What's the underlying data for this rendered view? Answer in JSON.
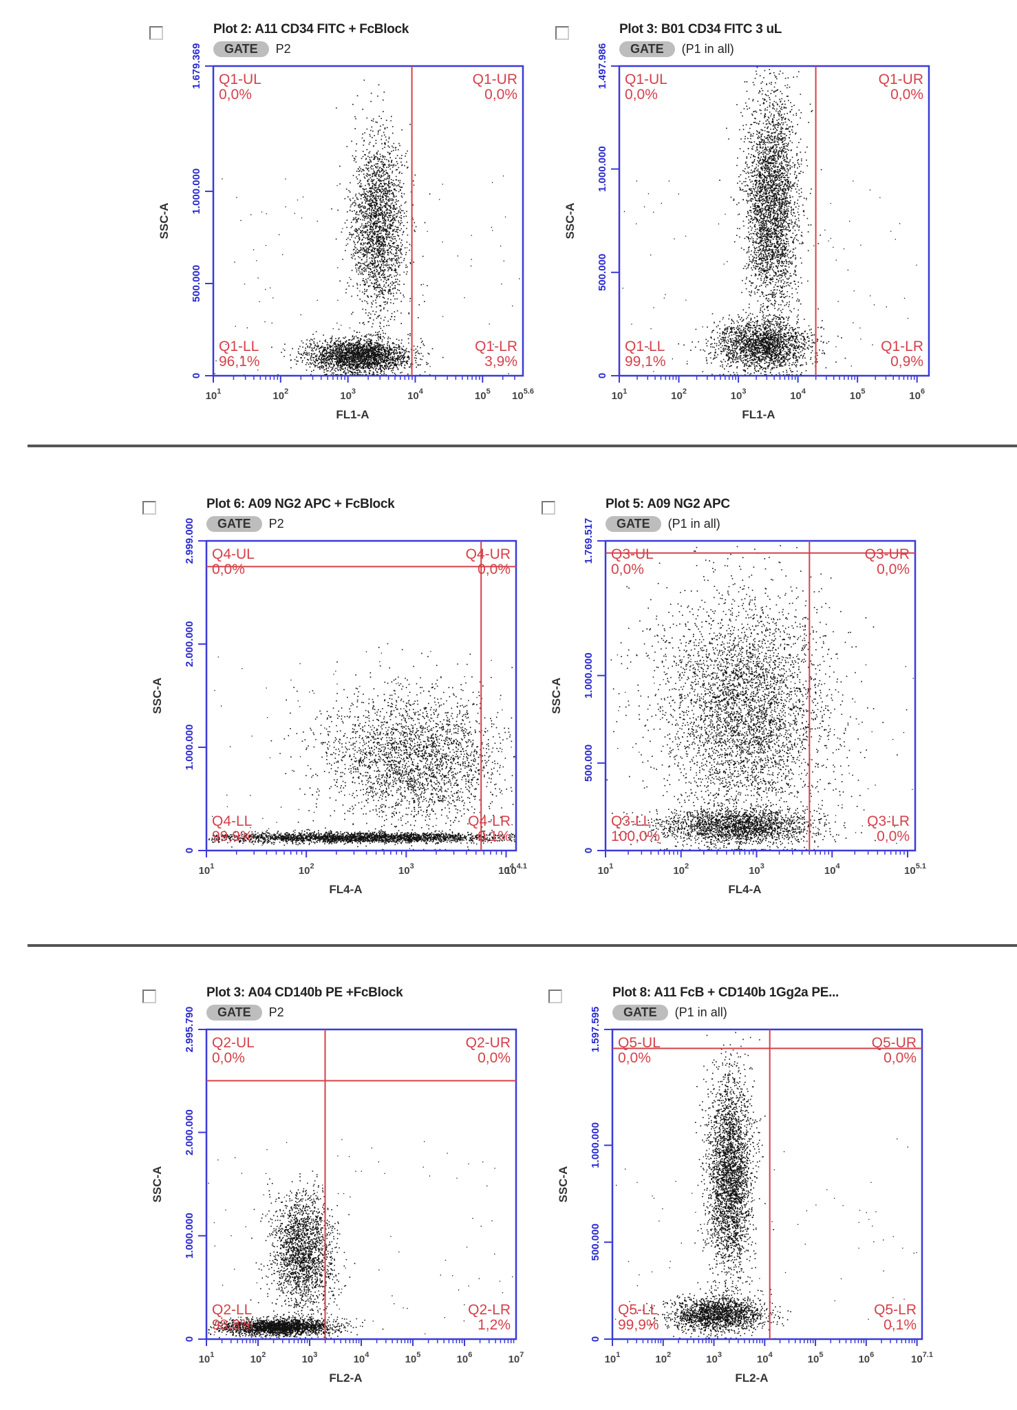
{
  "separators": 2,
  "chart_data": [
    {
      "type": "scatter",
      "title": "Plot 2: A11 CD34 FITC + FcBlock",
      "gate": "GATE",
      "gate_pop": "P2",
      "xlabel": "FL1-A",
      "ylabel": "SSC-A",
      "xticks": [
        "10^1",
        "10^2",
        "10^3",
        "10^4",
        "10^5",
        "10^5.6"
      ],
      "xlog_range": [
        1,
        5.6
      ],
      "yticks": [
        "0",
        "500.000",
        "1.000.000",
        "1.679.369"
      ],
      "ylim": [
        0,
        1679369
      ],
      "vline_x": 3.95,
      "hline_y": null,
      "quadrants": [
        {
          "name": "Q1-UL",
          "pct": "0,0%"
        },
        {
          "name": "Q1-UR",
          "pct": "0,0%"
        },
        {
          "name": "Q1-LL",
          "pct": "96,1%"
        },
        {
          "name": "Q1-LR",
          "pct": "3,9%"
        }
      ],
      "populations": [
        {
          "cx": 3.45,
          "cy": 820000,
          "sx": 0.2,
          "sy": 240000,
          "n": 2200
        },
        {
          "cx": 3.15,
          "cy": 110000,
          "sx": 0.38,
          "sy": 45000,
          "n": 2400
        }
      ]
    },
    {
      "type": "scatter",
      "title": "Plot 3: B01 CD34 FITC 3 uL",
      "gate": "GATE",
      "gate_pop": "(P1 in all)",
      "xlabel": "FL1-A",
      "ylabel": "SSC-A",
      "xticks": [
        "10^1",
        "10^2",
        "10^3",
        "10^4",
        "10^5",
        "10^6"
      ],
      "xlog_range": [
        1,
        6.2
      ],
      "yticks": [
        "0",
        "500.000",
        "1.000.000",
        "1.497.986"
      ],
      "ylim": [
        0,
        1497986
      ],
      "vline_x": 4.3,
      "hline_y": null,
      "quadrants": [
        {
          "name": "Q1-UL",
          "pct": "0,0%"
        },
        {
          "name": "Q1-UR",
          "pct": "0,0%"
        },
        {
          "name": "Q1-LL",
          "pct": "99,1%"
        },
        {
          "name": "Q1-LR",
          "pct": "0,9%"
        }
      ],
      "populations": [
        {
          "cx": 3.55,
          "cy": 830000,
          "sx": 0.22,
          "sy": 270000,
          "n": 3200
        },
        {
          "cx": 3.4,
          "cy": 150000,
          "sx": 0.4,
          "sy": 60000,
          "n": 2000
        }
      ]
    },
    {
      "type": "scatter",
      "title": "Plot 6: A09 NG2 APC + FcBlock",
      "gate": "GATE",
      "gate_pop": "P2",
      "xlabel": "FL4-A",
      "ylabel": "SSC-A",
      "xticks": [
        "10^1",
        "10^2",
        "10^3",
        "10^4",
        "10^4.1"
      ],
      "xlog_range": [
        1,
        4.1
      ],
      "yticks": [
        "0",
        "1.000.000",
        "2.000.000",
        "2.999.000"
      ],
      "ylim": [
        0,
        2999000
      ],
      "vline_x": 3.75,
      "hline_y": 2750000,
      "quadrants": [
        {
          "name": "Q4-UL",
          "pct": "0,0%"
        },
        {
          "name": "Q4-UR",
          "pct": "0,0%"
        },
        {
          "name": "Q4-LL",
          "pct": "99,9%"
        },
        {
          "name": "Q4-LR",
          "pct": "0,1%"
        }
      ],
      "populations": [
        {
          "cx": 3.05,
          "cy": 900000,
          "sx": 0.45,
          "sy": 320000,
          "n": 2600
        },
        {
          "cx": 2.5,
          "cy": 130000,
          "sx": 0.75,
          "sy": 25000,
          "n": 2600
        }
      ]
    },
    {
      "type": "scatter",
      "title": "Plot 5: A09 NG2 APC",
      "gate": "GATE",
      "gate_pop": "(P1 in all)",
      "xlabel": "FL4-A",
      "ylabel": "SSC-A",
      "xticks": [
        "10^1",
        "10^2",
        "10^3",
        "10^4",
        "10^5.1"
      ],
      "xlog_range": [
        1,
        5.1
      ],
      "yticks": [
        "0",
        "500.000",
        "1.000.000",
        "1.769.517"
      ],
      "ylim": [
        0,
        1769517
      ],
      "vline_x": 3.7,
      "hline_y": 1700000,
      "quadrants": [
        {
          "name": "Q3-UL",
          "pct": "0,0%"
        },
        {
          "name": "Q3-UR",
          "pct": "0,0%"
        },
        {
          "name": "Q3-LL",
          "pct": "100,0%"
        },
        {
          "name": "Q3-LR",
          "pct": "0,0%"
        }
      ],
      "populations": [
        {
          "cx": 2.85,
          "cy": 800000,
          "sx": 0.55,
          "sy": 330000,
          "n": 4200
        },
        {
          "cx": 2.75,
          "cy": 140000,
          "sx": 0.5,
          "sy": 50000,
          "n": 2000
        }
      ]
    },
    {
      "type": "scatter",
      "title": "Plot 3: A04 CD140b PE +FcBlock",
      "gate": "GATE",
      "gate_pop": "P2",
      "xlabel": "FL2-A",
      "ylabel": "SSC-A",
      "xticks": [
        "10^1",
        "10^2",
        "10^3",
        "10^4",
        "10^5",
        "10^6",
        "10^7"
      ],
      "xlog_range": [
        1,
        7
      ],
      "yticks": [
        "0",
        "1.000.000",
        "2.000.000",
        "2.995.790"
      ],
      "ylim": [
        0,
        2995790
      ],
      "vline_x": 3.3,
      "hline_y": 2500000,
      "quadrants": [
        {
          "name": "Q2-UL",
          "pct": "0,0%"
        },
        {
          "name": "Q2-UR",
          "pct": "0,0%"
        },
        {
          "name": "Q2-LL",
          "pct": "98,8%"
        },
        {
          "name": "Q2-LR",
          "pct": "1,2%"
        }
      ],
      "populations": [
        {
          "cx": 2.85,
          "cy": 850000,
          "sx": 0.3,
          "sy": 280000,
          "n": 2000
        },
        {
          "cx": 2.4,
          "cy": 120000,
          "sx": 0.55,
          "sy": 40000,
          "n": 2200
        }
      ]
    },
    {
      "type": "scatter",
      "title": "Plot 8: A11 FcB + CD140b 1Gg2a PE...",
      "gate": "GATE",
      "gate_pop": "(P1 in all)",
      "xlabel": "FL2-A",
      "ylabel": "SSC-A",
      "xticks": [
        "10^1",
        "10^2",
        "10^3",
        "10^4",
        "10^5",
        "10^6",
        "10^7.1"
      ],
      "xlog_range": [
        1,
        7.1
      ],
      "yticks": [
        "0",
        "500.000",
        "1.000.000",
        "1.597.595"
      ],
      "ylim": [
        0,
        1597595
      ],
      "vline_x": 4.1,
      "hline_y": 1500000,
      "quadrants": [
        {
          "name": "Q5-UL",
          "pct": "0,0%"
        },
        {
          "name": "Q5-UR",
          "pct": "0,0%"
        },
        {
          "name": "Q5-LL",
          "pct": "99,9%"
        },
        {
          "name": "Q5-LR",
          "pct": "0,1%"
        }
      ],
      "populations": [
        {
          "cx": 3.3,
          "cy": 850000,
          "sx": 0.22,
          "sy": 260000,
          "n": 3000
        },
        {
          "cx": 3.05,
          "cy": 130000,
          "sx": 0.45,
          "sy": 45000,
          "n": 1800
        }
      ]
    }
  ]
}
